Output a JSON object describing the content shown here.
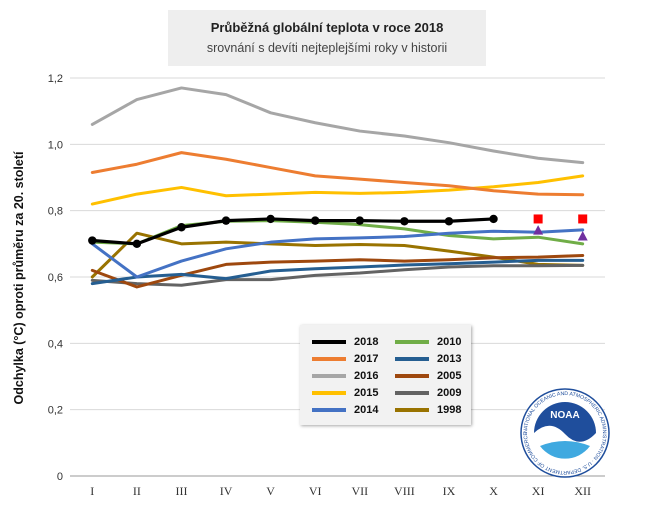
{
  "title": "Průběžná globální teplota v roce 2018",
  "subtitle": "srovnání s devíti nejteplejšími roky v historii",
  "logo_text": "NATIONAL OCEANIC AND ATMOSPHERIC ADMINISTRATION · U.S. DEPARTMENT OF COMMERCE",
  "logo_word": "NOAA",
  "chart_data": {
    "type": "line",
    "ylabel": "Odchylka (°C) oproti průměru za 20. století",
    "xlabel": "",
    "categories": [
      "I",
      "II",
      "III",
      "IV",
      "V",
      "VI",
      "VII",
      "VIII",
      "IX",
      "X",
      "XI",
      "XII"
    ],
    "y_ticks": [
      "0",
      "0,2",
      "0,4",
      "0,6",
      "0,8",
      "1,0",
      "1,2"
    ],
    "ylim": [
      0,
      1.2
    ],
    "grid": "horizontal",
    "legend_placement": "bottom-center",
    "series": [
      {
        "name": "2018",
        "color": "#000000",
        "markers": true,
        "values": [
          0.71,
          0.7,
          0.75,
          0.77,
          0.775,
          0.77,
          0.77,
          0.768,
          0.768,
          0.775,
          null,
          null
        ]
      },
      {
        "name": "2017",
        "color": "#ed7d31",
        "values": [
          0.915,
          0.94,
          0.975,
          0.955,
          0.93,
          0.905,
          0.895,
          0.885,
          0.875,
          0.86,
          0.85,
          0.848
        ]
      },
      {
        "name": "2016",
        "color": "#a6a6a6",
        "values": [
          1.06,
          1.135,
          1.17,
          1.15,
          1.095,
          1.065,
          1.04,
          1.025,
          1.005,
          0.98,
          0.958,
          0.945
        ]
      },
      {
        "name": "2015",
        "color": "#ffc000",
        "values": [
          0.82,
          0.85,
          0.87,
          0.845,
          0.85,
          0.855,
          0.852,
          0.855,
          0.862,
          0.872,
          0.885,
          0.905
        ]
      },
      {
        "name": "2014",
        "color": "#4472c4",
        "values": [
          0.7,
          0.6,
          0.648,
          0.685,
          0.705,
          0.715,
          0.718,
          0.722,
          0.732,
          0.738,
          0.735,
          0.742
        ]
      },
      {
        "name": "2010",
        "color": "#70ad47",
        "values": [
          0.705,
          0.7,
          0.755,
          0.768,
          0.77,
          0.765,
          0.758,
          0.745,
          0.725,
          0.715,
          0.72,
          0.7
        ]
      },
      {
        "name": "2013",
        "color": "#255e91",
        "values": [
          0.58,
          0.6,
          0.608,
          0.595,
          0.618,
          0.625,
          0.63,
          0.636,
          0.64,
          0.645,
          0.65,
          0.65
        ]
      },
      {
        "name": "2005",
        "color": "#9e480e",
        "values": [
          0.62,
          0.57,
          0.605,
          0.638,
          0.645,
          0.648,
          0.652,
          0.648,
          0.652,
          0.658,
          0.66,
          0.665
        ]
      },
      {
        "name": "2009",
        "color": "#636363",
        "values": [
          0.59,
          0.58,
          0.575,
          0.592,
          0.592,
          0.605,
          0.612,
          0.622,
          0.63,
          0.634,
          0.634,
          0.635
        ]
      },
      {
        "name": "1998",
        "color": "#997300",
        "values": [
          0.6,
          0.732,
          0.7,
          0.705,
          0.7,
          0.695,
          0.698,
          0.695,
          0.678,
          0.66,
          0.638,
          0.635
        ]
      }
    ],
    "extra_markers": [
      {
        "shape": "square",
        "color": "#ff0000",
        "x": "XI",
        "y": 0.775
      },
      {
        "shape": "square",
        "color": "#ff0000",
        "x": "XII",
        "y": 0.775
      },
      {
        "shape": "triangle",
        "color": "#7030a0",
        "x": "XI",
        "y": 0.74
      },
      {
        "shape": "triangle",
        "color": "#7030a0",
        "x": "XII",
        "y": 0.722
      }
    ]
  }
}
